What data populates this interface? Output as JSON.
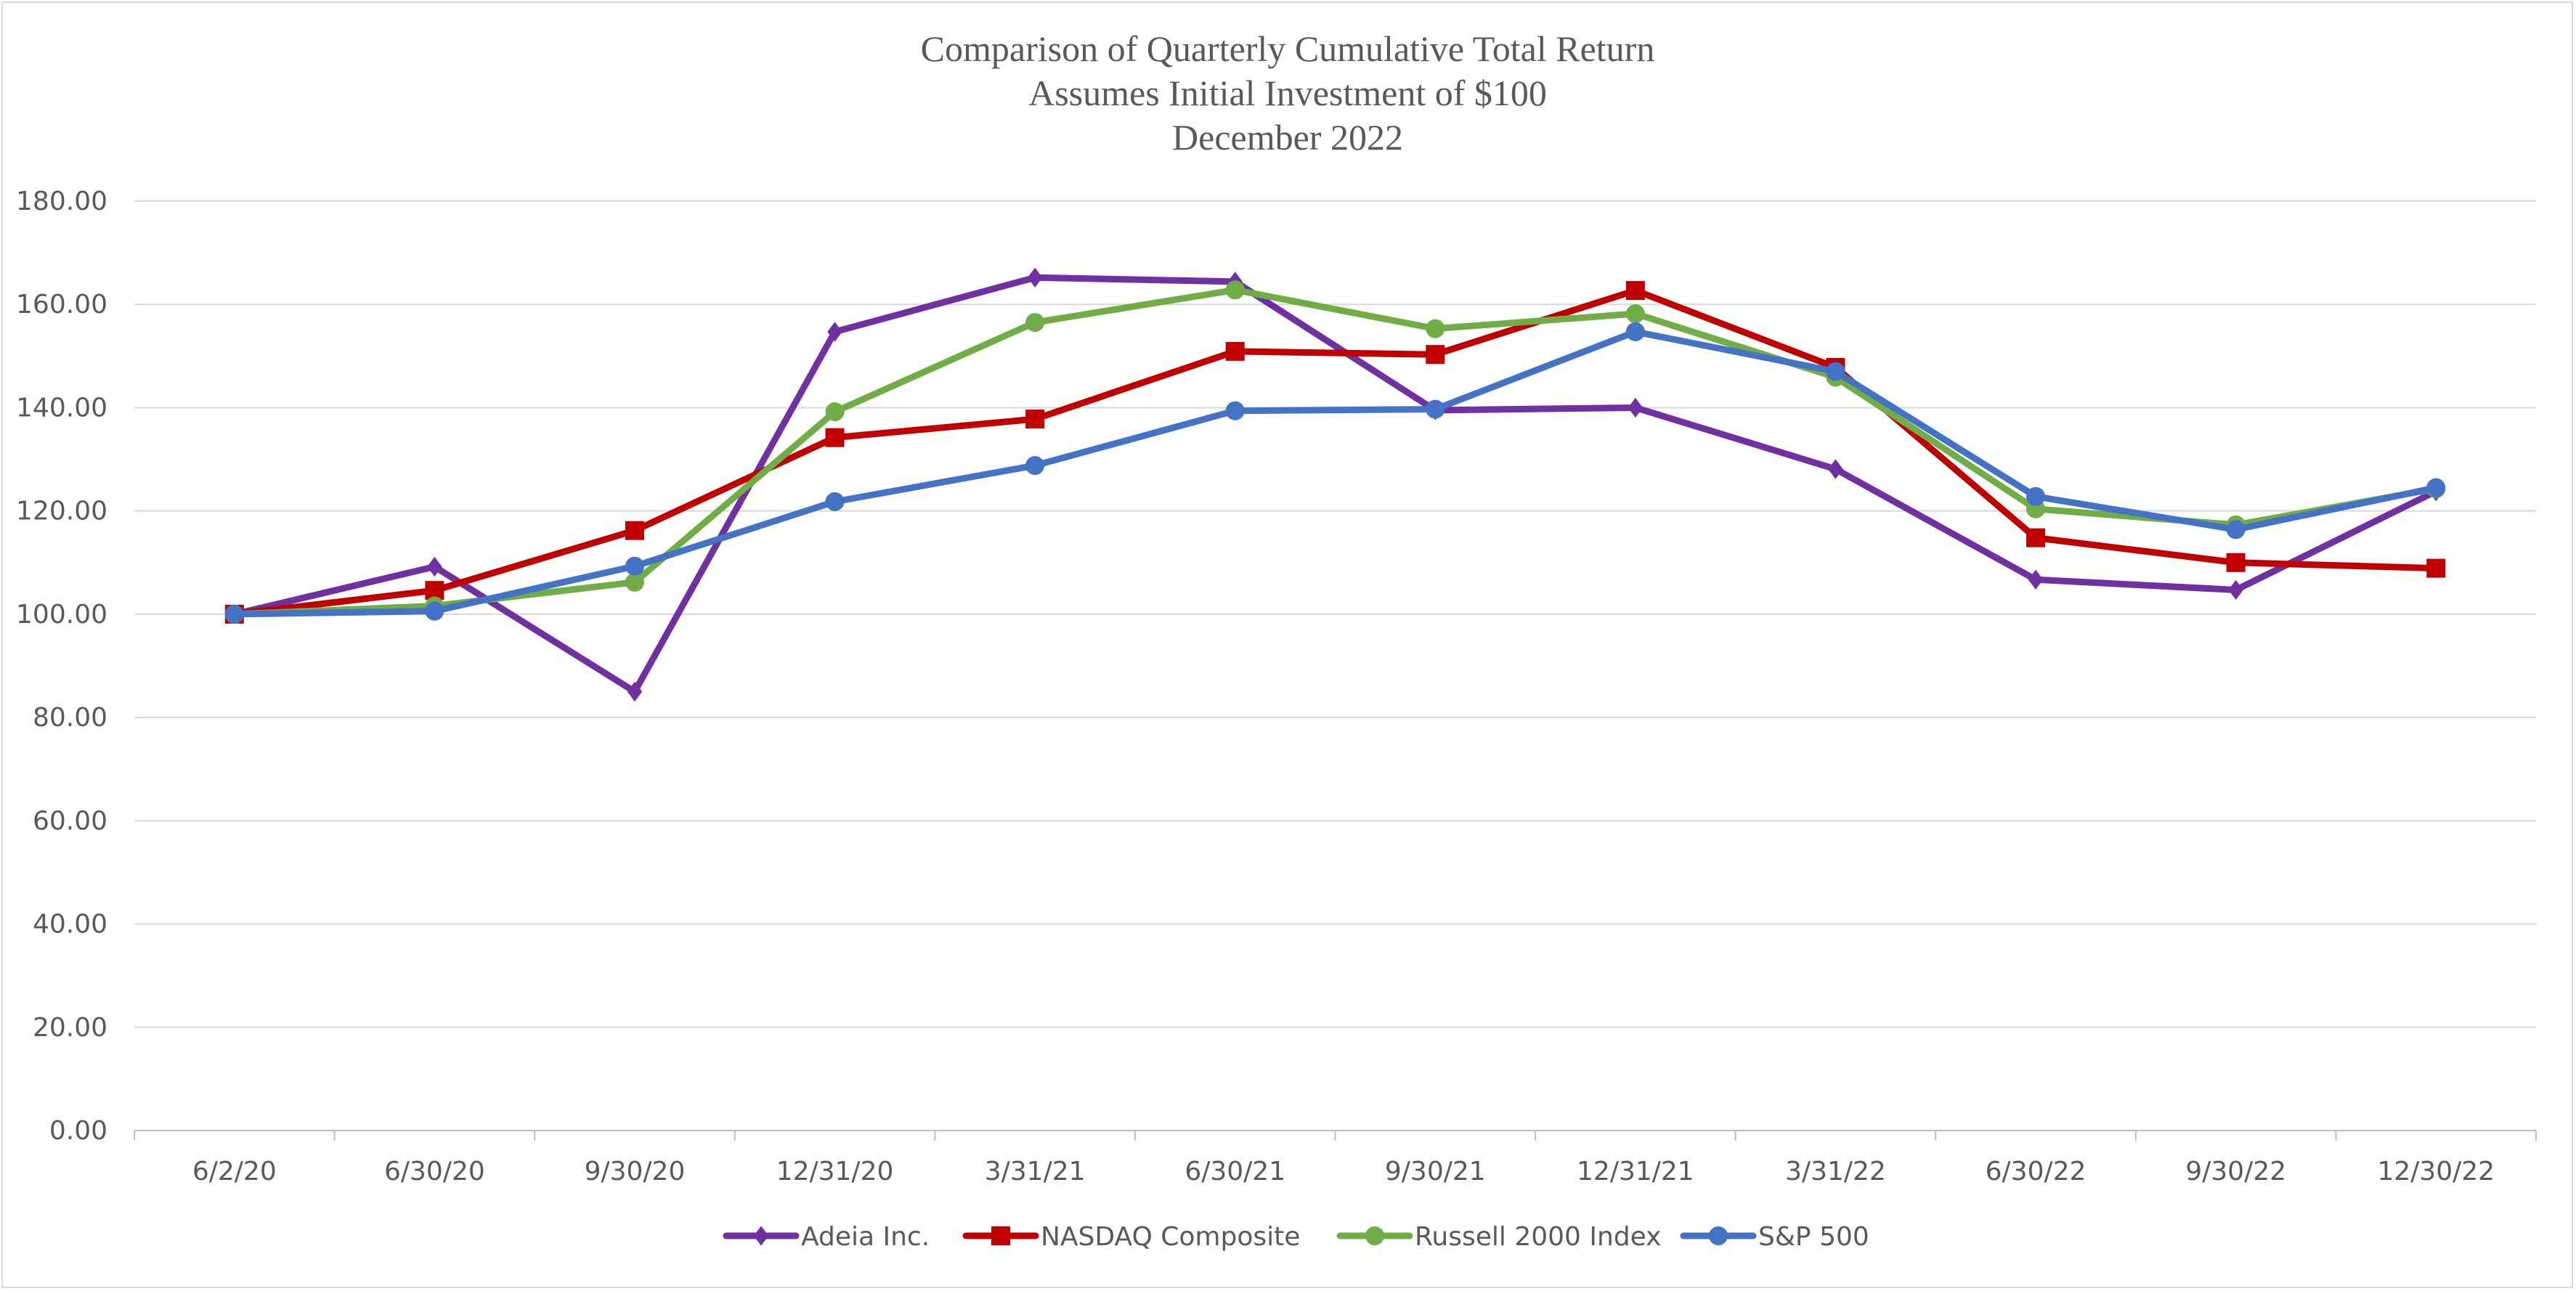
{
  "chart_data": {
    "type": "line",
    "title_lines": [
      "Comparison of Quarterly Cumulative Total Return",
      "Assumes Initial Investment of $100",
      "December 2022"
    ],
    "categories": [
      "6/2/20",
      "6/30/20",
      "9/30/20",
      "12/31/20",
      "3/31/21",
      "6/30/21",
      "9/30/21",
      "12/31/21",
      "3/31/22",
      "6/30/22",
      "9/30/22",
      "12/30/22"
    ],
    "y_ticks": [
      "0.00",
      "20.00",
      "40.00",
      "60.00",
      "80.00",
      "100.00",
      "120.00",
      "140.00",
      "160.00",
      "180.00"
    ],
    "ylim": [
      0,
      180
    ],
    "grid": true,
    "legend_position": "bottom",
    "series": [
      {
        "name": "Adeia Inc.",
        "color": "#7030a0",
        "marker": "diamond",
        "values": [
          100.0,
          109.2,
          85.0,
          154.7,
          165.2,
          164.4,
          139.5,
          140.0,
          128.1,
          106.7,
          104.7,
          123.8
        ]
      },
      {
        "name": "NASDAQ Composite",
        "color": "#c00000",
        "marker": "square",
        "values": [
          100.0,
          104.6,
          116.2,
          134.2,
          137.8,
          150.9,
          150.3,
          162.7,
          147.8,
          114.8,
          110.0,
          108.9
        ]
      },
      {
        "name": "Russell 2000 Index",
        "color": "#70ad47",
        "marker": "circle",
        "values": [
          100.0,
          101.6,
          106.2,
          139.2,
          156.5,
          162.8,
          155.3,
          158.2,
          145.9,
          120.4,
          117.3,
          124.3
        ]
      },
      {
        "name": "S&P 500",
        "color": "#4472c4",
        "marker": "circle",
        "values": [
          100.0,
          100.6,
          109.3,
          121.8,
          128.8,
          139.4,
          139.7,
          154.7,
          147.0,
          122.8,
          116.4,
          124.5
        ]
      }
    ]
  }
}
